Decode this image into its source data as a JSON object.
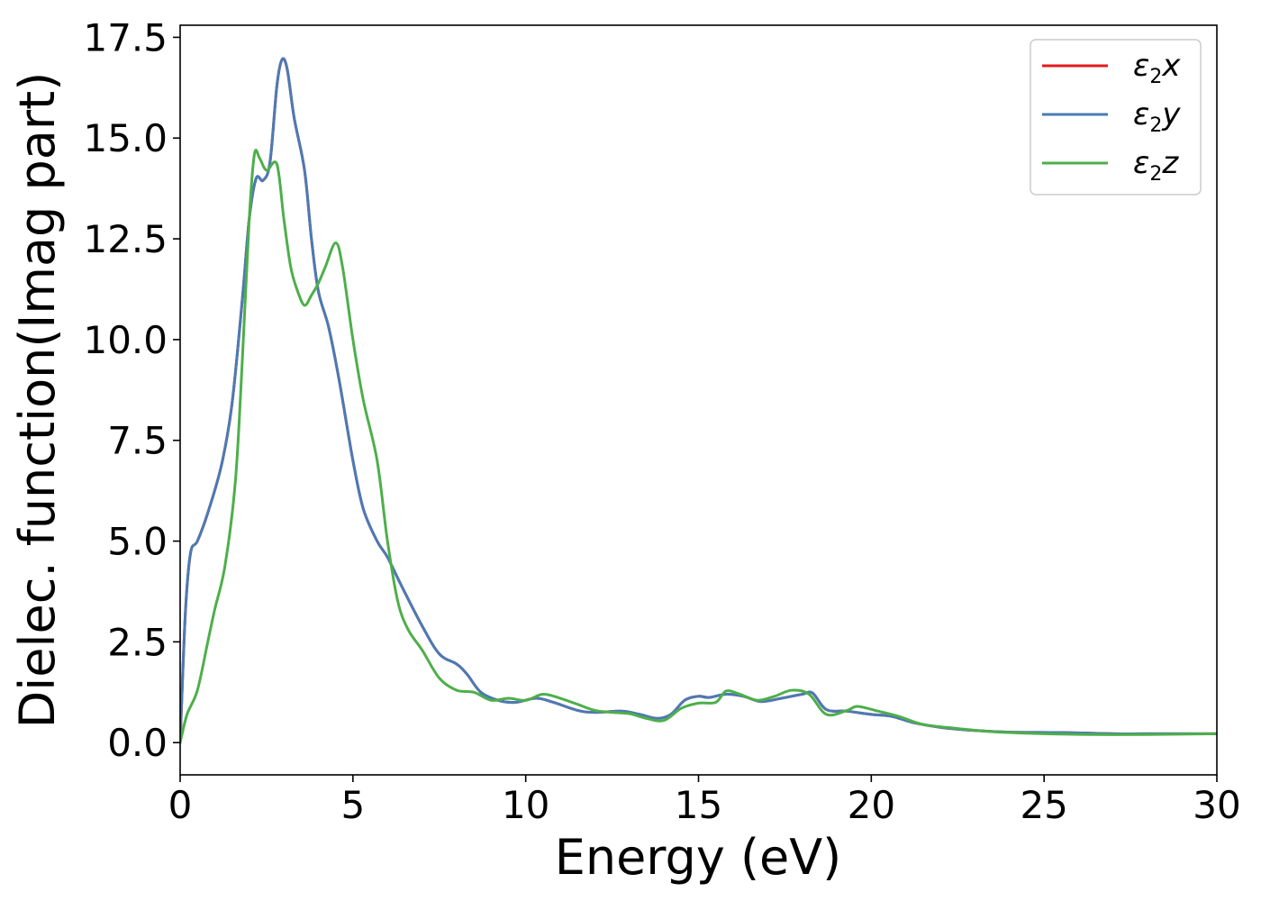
{
  "chart_data": {
    "type": "line",
    "title": "",
    "xlabel": "Energy (eV)",
    "ylabel": "Dielec. function(Imag part)",
    "xlim": [
      0,
      30
    ],
    "ylim": [
      -0.8,
      17.8
    ],
    "xticks": [
      "0",
      "5",
      "10",
      "15",
      "20",
      "25",
      "30"
    ],
    "yticks": [
      "0.0",
      "2.5",
      "5.0",
      "7.5",
      "10.0",
      "12.5",
      "15.0",
      "17.5"
    ],
    "grid": false,
    "legend_position": "top-right",
    "series": [
      {
        "name": "ε2x",
        "legend": {
          "base": "ε",
          "sub": "2",
          "suffix": "x"
        },
        "color": "#e41a1c",
        "points": [
          [
            0,
            0
          ],
          [
            0.15,
            3.2
          ],
          [
            0.3,
            4.7
          ],
          [
            0.5,
            5.0
          ],
          [
            0.8,
            5.7
          ],
          [
            1.2,
            6.9
          ],
          [
            1.5,
            8.4
          ],
          [
            1.8,
            11.0
          ],
          [
            2.0,
            13.0
          ],
          [
            2.2,
            14.0
          ],
          [
            2.4,
            13.95
          ],
          [
            2.6,
            14.4
          ],
          [
            2.8,
            16.3
          ],
          [
            2.95,
            16.95
          ],
          [
            3.1,
            16.7
          ],
          [
            3.3,
            15.5
          ],
          [
            3.6,
            14.2
          ],
          [
            3.8,
            12.5
          ],
          [
            4.0,
            11.2
          ],
          [
            4.3,
            10.3
          ],
          [
            4.6,
            9.0
          ],
          [
            5.0,
            7.0
          ],
          [
            5.3,
            5.8
          ],
          [
            5.7,
            5.0
          ],
          [
            6.0,
            4.6
          ],
          [
            6.4,
            3.9
          ],
          [
            7.0,
            2.9
          ],
          [
            7.5,
            2.2
          ],
          [
            8.0,
            1.95
          ],
          [
            8.3,
            1.7
          ],
          [
            8.7,
            1.25
          ],
          [
            9.2,
            1.05
          ],
          [
            9.7,
            1.0
          ],
          [
            10.3,
            1.1
          ],
          [
            10.8,
            1.0
          ],
          [
            11.5,
            0.8
          ],
          [
            12.0,
            0.75
          ],
          [
            12.8,
            0.78
          ],
          [
            13.3,
            0.7
          ],
          [
            13.8,
            0.6
          ],
          [
            14.2,
            0.7
          ],
          [
            14.6,
            1.05
          ],
          [
            15.0,
            1.15
          ],
          [
            15.3,
            1.12
          ],
          [
            15.8,
            1.2
          ],
          [
            16.3,
            1.15
          ],
          [
            16.8,
            1.02
          ],
          [
            17.4,
            1.1
          ],
          [
            18.0,
            1.2
          ],
          [
            18.3,
            1.23
          ],
          [
            18.7,
            0.82
          ],
          [
            19.3,
            0.78
          ],
          [
            20.0,
            0.7
          ],
          [
            20.6,
            0.65
          ],
          [
            21.2,
            0.5
          ],
          [
            22.0,
            0.38
          ],
          [
            23.0,
            0.3
          ],
          [
            24.0,
            0.26
          ],
          [
            25.5,
            0.25
          ],
          [
            27.0,
            0.22
          ],
          [
            28.5,
            0.22
          ],
          [
            30,
            0.22
          ]
        ]
      },
      {
        "name": "ε2y",
        "legend": {
          "base": "ε",
          "sub": "2",
          "suffix": "y"
        },
        "color": "#4a7bb5",
        "points": [
          [
            0,
            0
          ],
          [
            0.15,
            3.2
          ],
          [
            0.3,
            4.7
          ],
          [
            0.5,
            5.0
          ],
          [
            0.8,
            5.7
          ],
          [
            1.2,
            6.9
          ],
          [
            1.5,
            8.4
          ],
          [
            1.8,
            11.0
          ],
          [
            2.0,
            13.0
          ],
          [
            2.2,
            14.0
          ],
          [
            2.4,
            13.95
          ],
          [
            2.6,
            14.4
          ],
          [
            2.8,
            16.3
          ],
          [
            2.95,
            16.95
          ],
          [
            3.1,
            16.7
          ],
          [
            3.3,
            15.5
          ],
          [
            3.6,
            14.2
          ],
          [
            3.8,
            12.5
          ],
          [
            4.0,
            11.2
          ],
          [
            4.3,
            10.3
          ],
          [
            4.6,
            9.0
          ],
          [
            5.0,
            7.0
          ],
          [
            5.3,
            5.8
          ],
          [
            5.7,
            5.0
          ],
          [
            6.0,
            4.6
          ],
          [
            6.4,
            3.9
          ],
          [
            7.0,
            2.9
          ],
          [
            7.5,
            2.2
          ],
          [
            8.0,
            1.95
          ],
          [
            8.3,
            1.7
          ],
          [
            8.7,
            1.25
          ],
          [
            9.2,
            1.05
          ],
          [
            9.7,
            1.0
          ],
          [
            10.3,
            1.1
          ],
          [
            10.8,
            1.0
          ],
          [
            11.5,
            0.8
          ],
          [
            12.0,
            0.75
          ],
          [
            12.8,
            0.78
          ],
          [
            13.3,
            0.7
          ],
          [
            13.8,
            0.6
          ],
          [
            14.2,
            0.7
          ],
          [
            14.6,
            1.05
          ],
          [
            15.0,
            1.15
          ],
          [
            15.3,
            1.12
          ],
          [
            15.8,
            1.2
          ],
          [
            16.3,
            1.15
          ],
          [
            16.8,
            1.02
          ],
          [
            17.4,
            1.1
          ],
          [
            18.0,
            1.2
          ],
          [
            18.3,
            1.23
          ],
          [
            18.7,
            0.82
          ],
          [
            19.3,
            0.78
          ],
          [
            20.0,
            0.7
          ],
          [
            20.6,
            0.65
          ],
          [
            21.2,
            0.5
          ],
          [
            22.0,
            0.38
          ],
          [
            23.0,
            0.3
          ],
          [
            24.0,
            0.26
          ],
          [
            25.5,
            0.25
          ],
          [
            27.0,
            0.22
          ],
          [
            28.5,
            0.22
          ],
          [
            30,
            0.22
          ]
        ]
      },
      {
        "name": "ε2z",
        "legend": {
          "base": "ε",
          "sub": "2",
          "suffix": "z"
        },
        "color": "#4daf4a",
        "points": [
          [
            0,
            0
          ],
          [
            0.2,
            0.7
          ],
          [
            0.5,
            1.3
          ],
          [
            0.8,
            2.5
          ],
          [
            1.0,
            3.3
          ],
          [
            1.3,
            4.4
          ],
          [
            1.6,
            6.5
          ],
          [
            1.8,
            9.5
          ],
          [
            2.0,
            13.0
          ],
          [
            2.15,
            14.6
          ],
          [
            2.3,
            14.5
          ],
          [
            2.5,
            14.2
          ],
          [
            2.8,
            14.35
          ],
          [
            3.0,
            13.0
          ],
          [
            3.2,
            11.8
          ],
          [
            3.4,
            11.2
          ],
          [
            3.6,
            10.85
          ],
          [
            3.8,
            11.1
          ],
          [
            4.0,
            11.4
          ],
          [
            4.2,
            11.8
          ],
          [
            4.5,
            12.4
          ],
          [
            4.7,
            11.8
          ],
          [
            5.0,
            10.0
          ],
          [
            5.3,
            8.5
          ],
          [
            5.7,
            7.0
          ],
          [
            6.0,
            5.0
          ],
          [
            6.3,
            3.5
          ],
          [
            6.6,
            2.8
          ],
          [
            7.0,
            2.3
          ],
          [
            7.5,
            1.6
          ],
          [
            8.0,
            1.3
          ],
          [
            8.5,
            1.25
          ],
          [
            9.0,
            1.05
          ],
          [
            9.5,
            1.1
          ],
          [
            10.0,
            1.05
          ],
          [
            10.5,
            1.2
          ],
          [
            11.0,
            1.1
          ],
          [
            11.5,
            0.95
          ],
          [
            12.0,
            0.8
          ],
          [
            12.5,
            0.75
          ],
          [
            13.0,
            0.72
          ],
          [
            13.5,
            0.6
          ],
          [
            14.0,
            0.55
          ],
          [
            14.5,
            0.85
          ],
          [
            15.0,
            0.98
          ],
          [
            15.5,
            1.0
          ],
          [
            15.8,
            1.28
          ],
          [
            16.2,
            1.2
          ],
          [
            16.7,
            1.05
          ],
          [
            17.2,
            1.15
          ],
          [
            17.7,
            1.3
          ],
          [
            18.2,
            1.2
          ],
          [
            18.7,
            0.7
          ],
          [
            19.3,
            0.8
          ],
          [
            19.6,
            0.9
          ],
          [
            20.2,
            0.78
          ],
          [
            20.8,
            0.65
          ],
          [
            21.5,
            0.45
          ],
          [
            22.5,
            0.35
          ],
          [
            23.5,
            0.27
          ],
          [
            25.0,
            0.22
          ],
          [
            26.5,
            0.2
          ],
          [
            28.0,
            0.2
          ],
          [
            30,
            0.22
          ]
        ]
      }
    ]
  }
}
